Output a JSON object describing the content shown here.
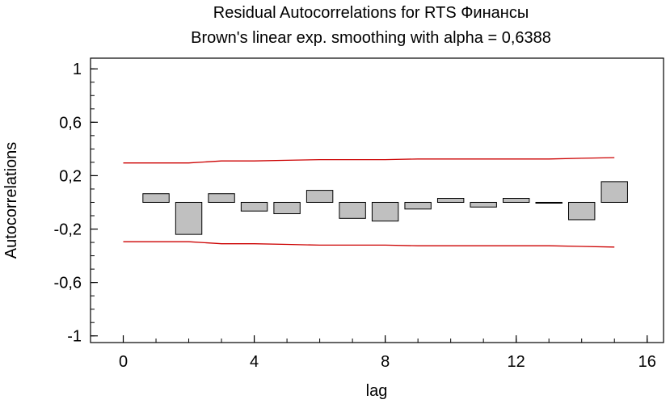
{
  "chart_data": {
    "type": "bar",
    "title": "Residual Autocorrelations for RTS Финансы",
    "subtitle": "Brown's linear exp. smoothing with alpha = 0,6388",
    "xlabel": "lag",
    "ylabel": "Autocorrelations",
    "xlim": [
      -1,
      16.5
    ],
    "ylim": [
      -1.05,
      1.08
    ],
    "x_ticks": [
      0,
      4,
      8,
      12,
      16
    ],
    "x_tick_labels": [
      "0",
      "4",
      "8",
      "12",
      "16"
    ],
    "y_ticks": [
      1,
      0.6,
      0.2,
      -0.2,
      -0.6,
      -1
    ],
    "y_tick_labels": [
      "1",
      "0,6",
      "0,2",
      "-0,2",
      "-0,6",
      "-1"
    ],
    "lags": [
      1,
      2,
      3,
      4,
      5,
      6,
      7,
      8,
      9,
      10,
      11,
      12,
      13,
      14,
      15
    ],
    "values": [
      0.065,
      -0.24,
      0.065,
      -0.065,
      -0.085,
      0.09,
      -0.12,
      -0.14,
      -0.05,
      0.03,
      -0.035,
      0.03,
      -0.005,
      -0.13,
      0.155
    ],
    "upper_limit": {
      "x": [
        0,
        2,
        3,
        4,
        5,
        6,
        7,
        8,
        9,
        10,
        11,
        12,
        13,
        14,
        15
      ],
      "y": [
        0.295,
        0.295,
        0.31,
        0.31,
        0.315,
        0.32,
        0.32,
        0.32,
        0.325,
        0.325,
        0.325,
        0.325,
        0.325,
        0.33,
        0.335
      ]
    },
    "lower_limit": {
      "x": [
        0,
        2,
        3,
        4,
        5,
        6,
        7,
        8,
        9,
        10,
        11,
        12,
        13,
        14,
        15
      ],
      "y": [
        -0.295,
        -0.295,
        -0.31,
        -0.31,
        -0.315,
        -0.32,
        -0.32,
        -0.32,
        -0.325,
        -0.325,
        -0.325,
        -0.325,
        -0.325,
        -0.33,
        -0.335
      ]
    },
    "bar_color": "#c0c0c0",
    "limit_color": "#cc0000",
    "grid": false
  }
}
